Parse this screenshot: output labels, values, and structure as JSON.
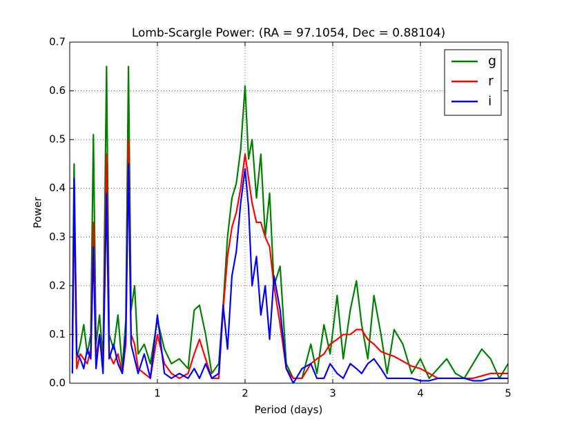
{
  "chart_data": {
    "type": "line",
    "title": "Lomb-Scargle Power: (RA = 97.1054, Dec = 0.88104)",
    "xlabel": "Period (days)",
    "ylabel": "Power",
    "x": [
      0.03,
      0.05,
      0.08,
      0.12,
      0.16,
      0.2,
      0.24,
      0.27,
      0.3,
      0.34,
      0.38,
      0.42,
      0.45,
      0.5,
      0.55,
      0.6,
      0.64,
      0.67,
      0.7,
      0.74,
      0.78,
      0.85,
      0.92,
      1.0,
      1.08,
      1.16,
      1.25,
      1.35,
      1.42,
      1.48,
      1.55,
      1.62,
      1.7,
      1.75,
      1.8,
      1.85,
      1.9,
      1.95,
      2.0,
      2.04,
      2.08,
      2.13,
      2.18,
      2.23,
      2.28,
      2.33,
      2.4,
      2.47,
      2.55,
      2.65,
      2.75,
      2.82,
      2.9,
      2.97,
      3.05,
      3.12,
      3.2,
      3.27,
      3.33,
      3.4,
      3.47,
      3.55,
      3.62,
      3.7,
      3.8,
      3.9,
      4.0,
      4.1,
      4.2,
      4.3,
      4.4,
      4.5,
      4.6,
      4.7,
      4.8,
      4.9,
      5.0
    ],
    "series": [
      {
        "name": "g",
        "color": "#008000",
        "values": [
          0.1,
          0.45,
          0.05,
          0.08,
          0.12,
          0.06,
          0.1,
          0.51,
          0.08,
          0.14,
          0.05,
          0.65,
          0.1,
          0.07,
          0.14,
          0.03,
          0.13,
          0.65,
          0.15,
          0.2,
          0.06,
          0.08,
          0.04,
          0.13,
          0.07,
          0.04,
          0.05,
          0.03,
          0.15,
          0.16,
          0.1,
          0.02,
          0.04,
          0.16,
          0.3,
          0.38,
          0.41,
          0.48,
          0.61,
          0.46,
          0.5,
          0.38,
          0.47,
          0.3,
          0.39,
          0.2,
          0.24,
          0.04,
          0.01,
          0.01,
          0.08,
          0.02,
          0.12,
          0.06,
          0.18,
          0.05,
          0.15,
          0.21,
          0.12,
          0.05,
          0.18,
          0.1,
          0.02,
          0.11,
          0.08,
          0.02,
          0.05,
          0.01,
          0.03,
          0.05,
          0.02,
          0.01,
          0.04,
          0.07,
          0.05,
          0.01,
          0.04
        ]
      },
      {
        "name": "r",
        "color": "#ff0000",
        "values": [
          0.05,
          0.38,
          0.03,
          0.06,
          0.05,
          0.04,
          0.07,
          0.33,
          0.05,
          0.1,
          0.03,
          0.47,
          0.06,
          0.04,
          0.06,
          0.02,
          0.08,
          0.5,
          0.1,
          0.08,
          0.03,
          0.02,
          0.01,
          0.1,
          0.04,
          0.02,
          0.01,
          0.02,
          0.06,
          0.09,
          0.05,
          0.01,
          0.01,
          0.15,
          0.26,
          0.32,
          0.35,
          0.4,
          0.47,
          0.42,
          0.37,
          0.33,
          0.33,
          0.3,
          0.28,
          0.2,
          0.12,
          0.03,
          0.01,
          0.01,
          0.04,
          0.05,
          0.06,
          0.08,
          0.09,
          0.1,
          0.1,
          0.11,
          0.11,
          0.09,
          0.08,
          0.065,
          0.06,
          0.055,
          0.045,
          0.035,
          0.03,
          0.02,
          0.01,
          0.01,
          0.01,
          0.01,
          0.01,
          0.015,
          0.02,
          0.02,
          0.02
        ]
      },
      {
        "name": "i",
        "color": "#0000ff",
        "values": [
          0.02,
          0.42,
          0.06,
          0.05,
          0.03,
          0.07,
          0.05,
          0.28,
          0.03,
          0.1,
          0.02,
          0.39,
          0.05,
          0.08,
          0.04,
          0.02,
          0.1,
          0.45,
          0.08,
          0.05,
          0.02,
          0.06,
          0.01,
          0.14,
          0.02,
          0.01,
          0.02,
          0.01,
          0.03,
          0.01,
          0.04,
          0.01,
          0.02,
          0.16,
          0.07,
          0.22,
          0.27,
          0.37,
          0.44,
          0.36,
          0.2,
          0.26,
          0.14,
          0.2,
          0.09,
          0.22,
          0.15,
          0.03,
          0.0,
          0.03,
          0.04,
          0.01,
          0.01,
          0.04,
          0.02,
          0.01,
          0.04,
          0.03,
          0.02,
          0.04,
          0.05,
          0.03,
          0.01,
          0.01,
          0.01,
          0.01,
          0.005,
          0.005,
          0.01,
          0.01,
          0.01,
          0.01,
          0.005,
          0.005,
          0.01,
          0.01,
          0.01
        ]
      }
    ],
    "xlim": [
      0,
      5
    ],
    "xticks": [
      1,
      2,
      3,
      4,
      5
    ],
    "ylim": [
      0,
      0.7
    ],
    "yticks": [
      {
        "value": 0,
        "label": "0.0"
      },
      0.1,
      0.2,
      0.3,
      0.4,
      0.5,
      0.6,
      0.7
    ],
    "grid": true,
    "legend": "upper right"
  }
}
